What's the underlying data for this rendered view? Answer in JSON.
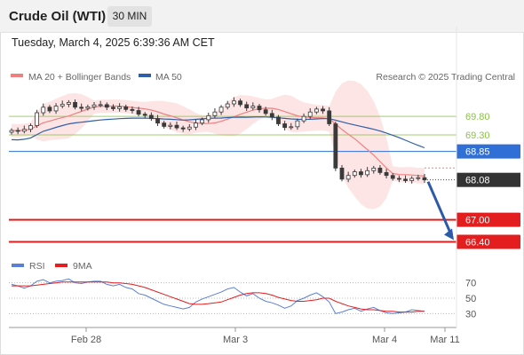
{
  "header": {
    "title": "Crude Oil (WTI)",
    "timeframe": "30 MIN"
  },
  "timestamp": "Tuesday, March 4, 2025 6:39:36 AM CET",
  "legend": {
    "ma20": "MA 20 + Bollinger Bands",
    "ma50": "MA 50",
    "copyright": "Research © 2025 Trading Central",
    "rsi": "RSI",
    "ma9": "9MA"
  },
  "colors": {
    "ma20": "#f08080",
    "ma50": "#2e5fa8",
    "band_fill": "#fde2e2",
    "resistance": "#8bc34a",
    "pivot": "#2f6fd6",
    "support": "#e41e1e",
    "candle": "#3a3a3a",
    "price_tag": "#333333",
    "arrow": "#2b5aa8",
    "rsi": "#5b7fd6",
    "rsi_ma": "#e41e1e"
  },
  "chart_data": [
    {
      "type": "candlestick",
      "title": "Crude Oil (WTI)",
      "timeframe": "30 MIN",
      "x_tick_labels": [
        "Feb 28",
        "Mar 3",
        "Mar 4",
        "Mar 11"
      ],
      "ylim": [
        66.1,
        70.55
      ],
      "levels": [
        {
          "label": "69.80",
          "value": 69.8,
          "kind": "resistance"
        },
        {
          "label": "69.30",
          "value": 69.3,
          "kind": "resistance"
        },
        {
          "label": "68.85",
          "value": 68.85,
          "kind": "pivot"
        },
        {
          "label": "67.00",
          "value": 67.0,
          "kind": "support"
        },
        {
          "label": "66.40",
          "value": 66.4,
          "kind": "support"
        }
      ],
      "last_price": {
        "label": "68.08",
        "value": 68.08
      },
      "target": 66.4,
      "series": [
        {
          "name": "MA 20 + Bollinger Bands",
          "kind": "ma20_bands"
        },
        {
          "name": "MA 50",
          "kind": "ma50"
        }
      ],
      "candles_close": [
        69.42,
        69.4,
        69.45,
        69.55,
        69.9,
        70.05,
        69.95,
        70.08,
        70.13,
        70.18,
        70.05,
        70.02,
        70.06,
        70.11,
        70.12,
        70.05,
        70.01,
        70.06,
        69.99,
        69.96,
        69.86,
        69.83,
        69.74,
        69.62,
        69.53,
        69.56,
        69.49,
        69.46,
        69.51,
        69.62,
        69.71,
        69.82,
        69.92,
        70.05,
        70.14,
        70.22,
        70.12,
        70.03,
        70.08,
        69.98,
        69.88,
        69.78,
        69.6,
        69.5,
        69.52,
        69.68,
        69.8,
        69.92,
        70.0,
        69.95,
        69.6,
        68.4,
        68.1,
        68.2,
        68.3,
        68.22,
        68.33,
        68.4,
        68.28,
        68.2,
        68.12,
        68.1,
        68.06,
        68.12,
        68.14,
        68.08
      ]
    },
    {
      "type": "line",
      "title": "RSI",
      "yticks": [
        30,
        50,
        70
      ],
      "ylim": [
        20,
        80
      ],
      "series": [
        {
          "name": "RSI",
          "values": [
            68,
            66,
            63,
            66,
            72,
            74,
            70,
            72,
            73,
            75,
            70,
            69,
            71,
            72,
            72,
            68,
            66,
            68,
            64,
            62,
            56,
            54,
            50,
            46,
            42,
            40,
            38,
            36,
            38,
            45,
            49,
            52,
            55,
            58,
            62,
            64,
            58,
            53,
            56,
            50,
            46,
            44,
            41,
            37,
            40,
            47,
            50,
            54,
            57,
            52,
            45,
            30,
            32,
            35,
            37,
            33,
            36,
            38,
            34,
            31,
            30,
            31,
            32,
            35,
            34,
            33
          ]
        },
        {
          "name": "9MA",
          "values": [
            66,
            66,
            66,
            66,
            67,
            68,
            69,
            70,
            71,
            71,
            71,
            71,
            71,
            71,
            71,
            71,
            70,
            70,
            69,
            68,
            66,
            64,
            61,
            58,
            55,
            52,
            49,
            46,
            43,
            42,
            42,
            43,
            44,
            45,
            48,
            51,
            54,
            56,
            57,
            57,
            56,
            54,
            51,
            49,
            47,
            46,
            46,
            47,
            48,
            50,
            50,
            46,
            43,
            40,
            38,
            36,
            35,
            35,
            34,
            33,
            33,
            32,
            32,
            32,
            33,
            33
          ]
        }
      ]
    }
  ]
}
